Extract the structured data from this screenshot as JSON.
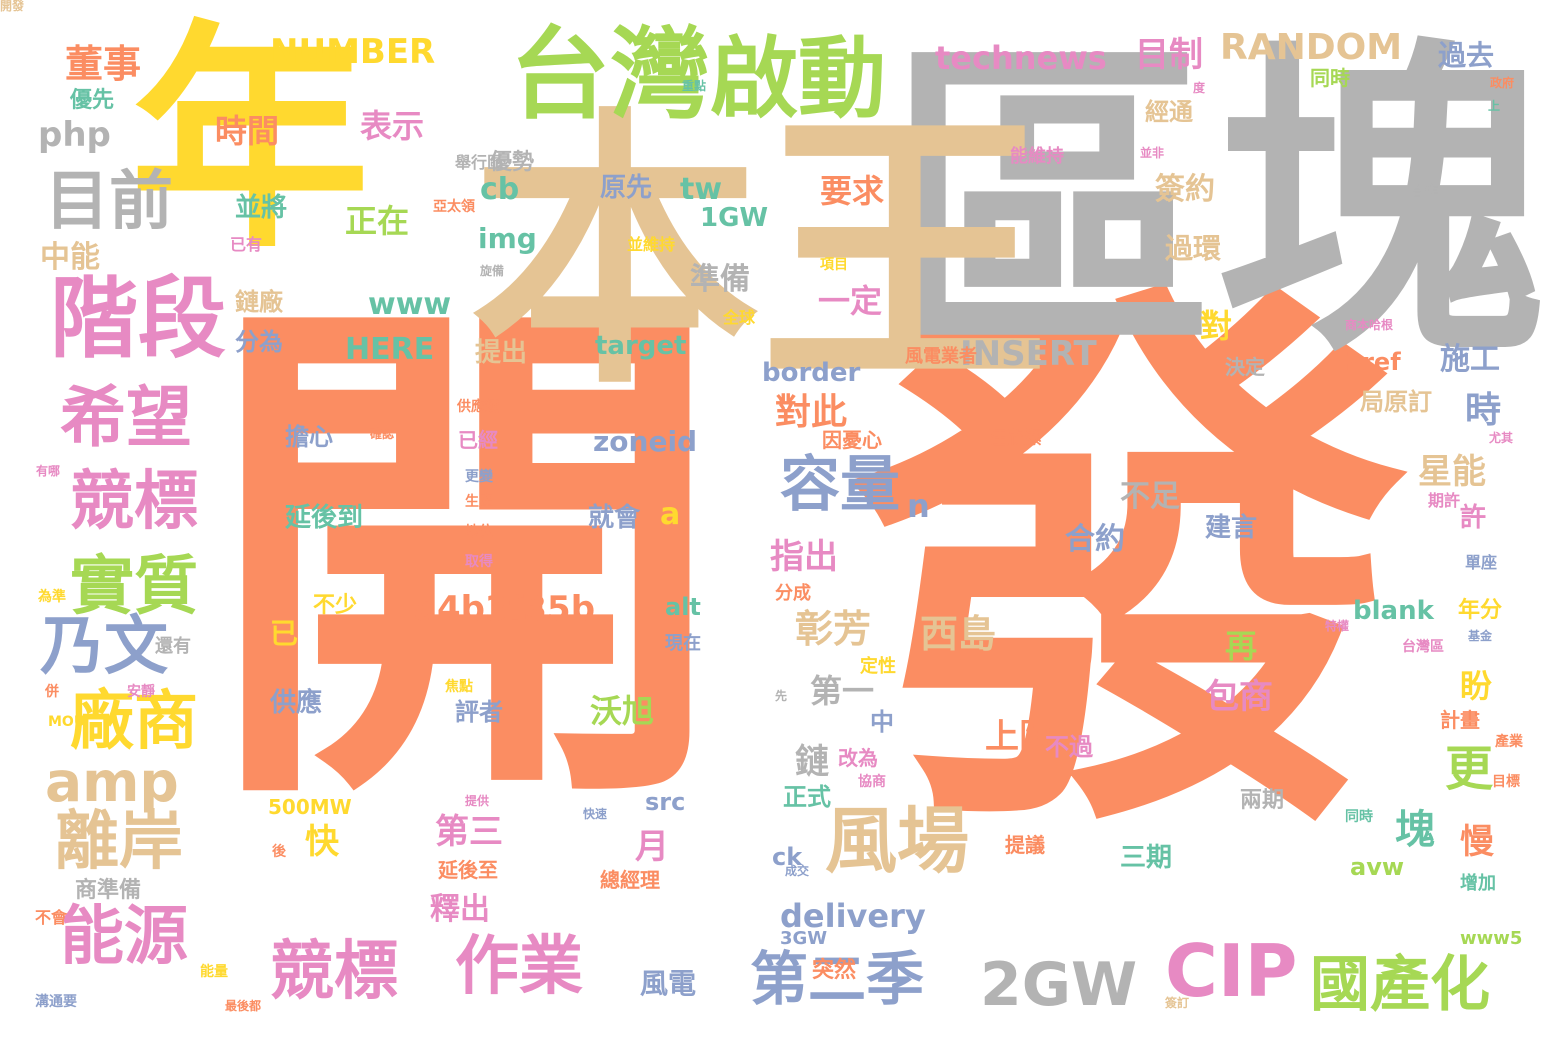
{
  "palette": {
    "orange": "#fb8d62",
    "tan": "#e5c494",
    "gray": "#b3b3b3",
    "yellow": "#ffd92f",
    "green": "#a6d854",
    "pink": "#e78ac3",
    "blue": "#8da0cb",
    "teal": "#66c2a5"
  },
  "words": [
    {
      "text": "開",
      "color": "orange"
    },
    {
      "text": "發",
      "color": "orange"
    },
    {
      "text": "區塊",
      "color": "gray"
    },
    {
      "text": "年",
      "color": "yellow"
    },
    {
      "text": "本王",
      "color": "tan"
    },
    {
      "text": "台灣",
      "color": "green"
    },
    {
      "text": "啟動",
      "color": "green"
    },
    {
      "text": "階段",
      "color": "pink"
    },
    {
      "text": "目前",
      "color": "gray"
    },
    {
      "text": "希望",
      "color": "pink"
    },
    {
      "text": "競標",
      "color": "pink"
    },
    {
      "text": "實質",
      "color": "green"
    },
    {
      "text": "乃文",
      "color": "blue"
    },
    {
      "text": "廠商",
      "color": "yellow"
    },
    {
      "text": "amp",
      "color": "tan"
    },
    {
      "text": "離岸",
      "color": "tan"
    },
    {
      "text": "能源",
      "color": "pink"
    },
    {
      "text": "競標",
      "color": "pink"
    },
    {
      "text": "作業",
      "color": "pink"
    },
    {
      "text": "風場",
      "color": "tan"
    },
    {
      "text": "容量",
      "color": "blue"
    },
    {
      "text": "CIP",
      "color": "pink"
    },
    {
      "text": "2GW",
      "color": "gray"
    },
    {
      "text": "國產化",
      "color": "green"
    },
    {
      "text": "第二季",
      "color": "blue"
    },
    {
      "text": "NUMBER",
      "color": "yellow"
    },
    {
      "text": "RANDOM",
      "color": "tan"
    },
    {
      "text": "technews",
      "color": "pink"
    },
    {
      "text": "目制",
      "color": "pink"
    },
    {
      "text": "董事",
      "color": "orange"
    },
    {
      "text": "優先",
      "color": "teal"
    },
    {
      "text": "php",
      "color": "gray"
    },
    {
      "text": "中能",
      "color": "tan"
    },
    {
      "text": "時間",
      "color": "orange"
    },
    {
      "text": "表示",
      "color": "pink"
    },
    {
      "text": "優勢",
      "color": "gray"
    },
    {
      "text": "cb",
      "color": "teal"
    },
    {
      "text": "原先",
      "color": "blue"
    },
    {
      "text": "tw",
      "color": "teal"
    },
    {
      "text": "1GW",
      "color": "teal"
    },
    {
      "text": "要求",
      "color": "orange"
    },
    {
      "text": "簽約",
      "color": "tan"
    },
    {
      "text": "經通",
      "color": "tan"
    },
    {
      "text": "過環",
      "color": "tan"
    },
    {
      "text": "能維持",
      "color": "pink"
    },
    {
      "text": "過去",
      "color": "blue"
    },
    {
      "text": "同時",
      "color": "green"
    },
    {
      "text": "並將",
      "color": "teal"
    },
    {
      "text": "正在",
      "color": "green"
    },
    {
      "text": "img",
      "color": "teal"
    },
    {
      "text": "www",
      "color": "teal"
    },
    {
      "text": "準備",
      "color": "gray"
    },
    {
      "text": "一定",
      "color": "pink"
    },
    {
      "text": "鏈廠",
      "color": "tan"
    },
    {
      "text": "分為",
      "color": "blue"
    },
    {
      "text": "HERE",
      "color": "teal"
    },
    {
      "text": "提出",
      "color": "tan"
    },
    {
      "text": "target",
      "color": "teal"
    },
    {
      "text": "INSERT",
      "color": "gray"
    },
    {
      "text": "對",
      "color": "yellow"
    },
    {
      "text": "施工",
      "color": "blue"
    },
    {
      "text": "border",
      "color": "blue"
    },
    {
      "text": "href",
      "color": "orange"
    },
    {
      "text": "局原訂",
      "color": "tan"
    },
    {
      "text": "決定",
      "color": "gray"
    },
    {
      "text": "時",
      "color": "blue"
    },
    {
      "text": "對此",
      "color": "orange"
    },
    {
      "text": "擔心",
      "color": "blue"
    },
    {
      "text": "已經",
      "color": "pink"
    },
    {
      "text": "zoneid",
      "color": "blue"
    },
    {
      "text": "因憂心",
      "color": "orange"
    },
    {
      "text": "汪欣潔",
      "color": "orange"
    },
    {
      "text": "星能",
      "color": "tan"
    },
    {
      "text": "不足",
      "color": "gray"
    },
    {
      "text": "延後到",
      "color": "teal"
    },
    {
      "text": "就會",
      "color": "blue"
    },
    {
      "text": "a",
      "color": "yellow"
    },
    {
      "text": "n",
      "color": "blue"
    },
    {
      "text": "合約",
      "color": "blue"
    },
    {
      "text": "建言",
      "color": "blue"
    },
    {
      "text": "許",
      "color": "pink"
    },
    {
      "text": "指出",
      "color": "pink"
    },
    {
      "text": "不少",
      "color": "yellow"
    },
    {
      "text": "a4b3f35b",
      "color": "orange"
    },
    {
      "text": "alt",
      "color": "teal"
    },
    {
      "text": "彰芳",
      "color": "tan"
    },
    {
      "text": "西島",
      "color": "tan"
    },
    {
      "text": "blank",
      "color": "teal"
    },
    {
      "text": "年分",
      "color": "yellow"
    },
    {
      "text": "再",
      "color": "green"
    },
    {
      "text": "已",
      "color": "yellow"
    },
    {
      "text": "沃旭",
      "color": "green"
    },
    {
      "text": "盼",
      "color": "yellow"
    },
    {
      "text": "第一",
      "color": "gray"
    },
    {
      "text": "供應",
      "color": "blue"
    },
    {
      "text": "評者",
      "color": "blue"
    },
    {
      "text": "包商",
      "color": "pink"
    },
    {
      "text": "上限",
      "color": "orange"
    },
    {
      "text": "計畫",
      "color": "orange"
    },
    {
      "text": "中",
      "color": "blue"
    },
    {
      "text": "更",
      "color": "green"
    },
    {
      "text": "鏈",
      "color": "gray"
    },
    {
      "text": "改為",
      "color": "pink"
    },
    {
      "text": "不過",
      "color": "pink"
    },
    {
      "text": "正式",
      "color": "teal"
    },
    {
      "text": "塊",
      "color": "teal"
    },
    {
      "text": "src",
      "color": "blue"
    },
    {
      "text": "月",
      "color": "pink"
    },
    {
      "text": "第三",
      "color": "pink"
    },
    {
      "text": "快",
      "color": "yellow"
    },
    {
      "text": "兩期",
      "color": "gray"
    },
    {
      "text": "慢",
      "color": "orange"
    },
    {
      "text": "500MW",
      "color": "yellow"
    },
    {
      "text": "ck",
      "color": "blue"
    },
    {
      "text": "三期",
      "color": "teal"
    },
    {
      "text": "提議",
      "color": "orange"
    },
    {
      "text": "avw",
      "color": "green"
    },
    {
      "text": "商準備",
      "color": "gray"
    },
    {
      "text": "延後至",
      "color": "orange"
    },
    {
      "text": "總經理",
      "color": "orange"
    },
    {
      "text": "增加",
      "color": "teal"
    },
    {
      "text": "釋出",
      "color": "pink"
    },
    {
      "text": "delivery",
      "color": "blue"
    },
    {
      "text": "3GW",
      "color": "blue"
    },
    {
      "text": "風電",
      "color": "blue"
    },
    {
      "text": "突然",
      "color": "orange"
    },
    {
      "text": "www5",
      "color": "green"
    },
    {
      "text": "還有",
      "color": "gray"
    },
    {
      "text": "全球",
      "color": "yellow"
    },
    {
      "text": "項目",
      "color": "yellow"
    },
    {
      "text": "並維持",
      "color": "yellow"
    },
    {
      "text": "供應鏈",
      "color": "orange"
    },
    {
      "text": "更變",
      "color": "blue"
    },
    {
      "text": "生產",
      "color": "orange"
    },
    {
      "text": "地位",
      "color": "orange"
    },
    {
      "text": "取得",
      "color": "pink"
    },
    {
      "text": "定性",
      "color": "yellow"
    },
    {
      "text": "分成",
      "color": "orange"
    },
    {
      "text": "現在",
      "color": "blue"
    },
    {
      "text": "焦點",
      "color": "yellow"
    },
    {
      "text": "風電業者",
      "color": "orange"
    },
    {
      "text": "單座",
      "color": "blue"
    },
    {
      "text": "期許",
      "color": "pink"
    },
    {
      "text": "舉行區",
      "color": "gray"
    },
    {
      "text": "旋備",
      "color": "gray"
    },
    {
      "text": "已有",
      "color": "pink"
    },
    {
      "text": "亞太領",
      "color": "orange"
    },
    {
      "text": "安靜",
      "color": "pink"
    },
    {
      "text": "協商",
      "color": "pink"
    },
    {
      "text": "確認",
      "color": "orange"
    },
    {
      "text": "政府",
      "color": "orange"
    },
    {
      "text": "同時",
      "color": "teal"
    },
    {
      "text": "提供",
      "color": "pink"
    },
    {
      "text": "目標",
      "color": "orange"
    },
    {
      "text": "能量",
      "color": "yellow"
    },
    {
      "text": "溝通要",
      "color": "blue"
    },
    {
      "text": "最後都",
      "color": "orange"
    },
    {
      "text": "不會",
      "color": "orange"
    },
    {
      "text": "併",
      "color": "orange"
    },
    {
      "text": "MOU",
      "color": "yellow"
    },
    {
      "text": "後",
      "color": "orange"
    },
    {
      "text": "上",
      "color": "teal"
    },
    {
      "text": "合作",
      "color": "gray"
    },
    {
      "text": "基金",
      "color": "blue"
    },
    {
      "text": "台灣區",
      "color": "pink"
    },
    {
      "text": "尤其",
      "color": "pink"
    },
    {
      "text": "有哪",
      "color": "pink"
    },
    {
      "text": "為準",
      "color": "yellow"
    },
    {
      "text": "重點",
      "color": "teal"
    },
    {
      "text": "度",
      "color": "pink"
    },
    {
      "text": "並非",
      "color": "pink"
    },
    {
      "text": "商本哈根",
      "color": "pink"
    },
    {
      "text": "簽訂",
      "color": "tan"
    },
    {
      "text": "產業",
      "color": "orange"
    },
    {
      "text": "先",
      "color": "gray"
    },
    {
      "text": "快速",
      "color": "blue"
    },
    {
      "text": "成交",
      "color": "blue"
    },
    {
      "text": "特權",
      "color": "pink"
    },
    {
      "text": "開發",
      "color": "tan"
    }
  ]
}
